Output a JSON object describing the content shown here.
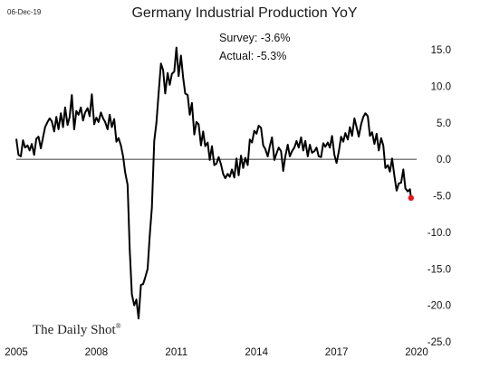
{
  "chart_data": {
    "type": "line",
    "title": "Germany Industrial Production YoY",
    "date_label": "06-Dec-19",
    "annotations": [
      "Survey: -3.6%",
      "Actual:  -5.3%"
    ],
    "source_logo": "The Daily Shot",
    "source_mark": "®",
    "xlim": [
      2005,
      2020
    ],
    "ylim": [
      -25,
      15
    ],
    "x_ticks": [
      {
        "value": 2005,
        "label": "2005"
      },
      {
        "value": 2008,
        "label": "2008"
      },
      {
        "value": 2011,
        "label": "2011"
      },
      {
        "value": 2014,
        "label": "2014"
      },
      {
        "value": 2017,
        "label": "2017"
      },
      {
        "value": 2020,
        "label": "2020"
      }
    ],
    "y_ticks": [
      {
        "value": 15,
        "label": "15.0"
      },
      {
        "value": 10,
        "label": "10.0"
      },
      {
        "value": 5,
        "label": "5.0"
      },
      {
        "value": 0,
        "label": "0.0"
      },
      {
        "value": -5,
        "label": "-5.0"
      },
      {
        "value": -10,
        "label": "-10.0"
      },
      {
        "value": -15,
        "label": "-15.0"
      },
      {
        "value": -20,
        "label": "-20.0"
      },
      {
        "value": -25,
        "label": "-25.0"
      }
    ],
    "grid": false,
    "line_color": "#000000",
    "marker_color": "#e8141c",
    "last_point": {
      "x": 2019.79,
      "y": -5.3
    },
    "series": [
      {
        "values": [
          [
            2005.0,
            2.8
          ],
          [
            2005.08,
            0.6
          ],
          [
            2005.17,
            0.4
          ],
          [
            2005.25,
            2.6
          ],
          [
            2005.33,
            1.6
          ],
          [
            2005.42,
            1.9
          ],
          [
            2005.5,
            1.2
          ],
          [
            2005.58,
            2.1
          ],
          [
            2005.67,
            0.6
          ],
          [
            2005.75,
            2.8
          ],
          [
            2005.83,
            3.1
          ],
          [
            2005.92,
            1.5
          ],
          [
            2006.0,
            3.0
          ],
          [
            2006.08,
            4.4
          ],
          [
            2006.17,
            5.1
          ],
          [
            2006.25,
            5.6
          ],
          [
            2006.33,
            5.2
          ],
          [
            2006.42,
            3.8
          ],
          [
            2006.5,
            5.8
          ],
          [
            2006.58,
            4.1
          ],
          [
            2006.67,
            6.3
          ],
          [
            2006.75,
            4.4
          ],
          [
            2006.83,
            7.1
          ],
          [
            2006.92,
            4.7
          ],
          [
            2007.0,
            5.8
          ],
          [
            2007.08,
            8.8
          ],
          [
            2007.17,
            4.1
          ],
          [
            2007.25,
            6.6
          ],
          [
            2007.33,
            6.1
          ],
          [
            2007.42,
            7.1
          ],
          [
            2007.5,
            5.3
          ],
          [
            2007.58,
            6.4
          ],
          [
            2007.67,
            7.0
          ],
          [
            2007.75,
            5.9
          ],
          [
            2007.83,
            8.9
          ],
          [
            2007.92,
            4.8
          ],
          [
            2008.0,
            5.7
          ],
          [
            2008.08,
            5.1
          ],
          [
            2008.17,
            6.4
          ],
          [
            2008.25,
            5.6
          ],
          [
            2008.33,
            5.1
          ],
          [
            2008.42,
            4.1
          ],
          [
            2008.5,
            6.1
          ],
          [
            2008.58,
            4.4
          ],
          [
            2008.67,
            5.5
          ],
          [
            2008.75,
            2.4
          ],
          [
            2008.83,
            2.9
          ],
          [
            2008.92,
            1.9
          ],
          [
            2009.0,
            0.4
          ],
          [
            2009.08,
            -1.8
          ],
          [
            2009.17,
            -3.5
          ],
          [
            2009.25,
            -12.3
          ],
          [
            2009.33,
            -18.5
          ],
          [
            2009.42,
            -20.0
          ],
          [
            2009.5,
            -19.2
          ],
          [
            2009.58,
            -21.8
          ],
          [
            2009.67,
            -17.2
          ],
          [
            2009.75,
            -17.1
          ],
          [
            2009.83,
            -16.2
          ],
          [
            2009.92,
            -15.0
          ],
          [
            2010.0,
            -10.5
          ],
          [
            2010.08,
            -6.6
          ],
          [
            2010.17,
            2.5
          ],
          [
            2010.25,
            5.0
          ],
          [
            2010.33,
            9.0
          ],
          [
            2010.42,
            13.1
          ],
          [
            2010.5,
            12.2
          ],
          [
            2010.58,
            9.0
          ],
          [
            2010.67,
            11.8
          ],
          [
            2010.75,
            10.2
          ],
          [
            2010.83,
            11.7
          ],
          [
            2010.92,
            12.0
          ],
          [
            2011.0,
            15.3
          ],
          [
            2011.08,
            11.4
          ],
          [
            2011.17,
            14.2
          ],
          [
            2011.25,
            11.2
          ],
          [
            2011.33,
            9.0
          ],
          [
            2011.42,
            8.8
          ],
          [
            2011.5,
            6.1
          ],
          [
            2011.58,
            7.7
          ],
          [
            2011.67,
            3.4
          ],
          [
            2011.75,
            5.1
          ],
          [
            2011.83,
            4.8
          ],
          [
            2011.92,
            1.9
          ],
          [
            2012.0,
            3.8
          ],
          [
            2012.08,
            1.8
          ],
          [
            2012.17,
            2.3
          ],
          [
            2012.25,
            -0.1
          ],
          [
            2012.33,
            1.8
          ],
          [
            2012.42,
            -0.8
          ],
          [
            2012.5,
            -0.6
          ],
          [
            2012.58,
            0.3
          ],
          [
            2012.67,
            -0.7
          ],
          [
            2012.75,
            -2.0
          ],
          [
            2012.83,
            -2.6
          ],
          [
            2012.92,
            -2.0
          ],
          [
            2013.0,
            -2.4
          ],
          [
            2013.08,
            -1.4
          ],
          [
            2013.17,
            -2.5
          ],
          [
            2013.25,
            0.1
          ],
          [
            2013.33,
            -2.2
          ],
          [
            2013.42,
            0.5
          ],
          [
            2013.5,
            -1.2
          ],
          [
            2013.58,
            0.2
          ],
          [
            2013.67,
            -0.8
          ],
          [
            2013.75,
            2.7
          ],
          [
            2013.83,
            2.3
          ],
          [
            2013.92,
            3.9
          ],
          [
            2014.0,
            3.5
          ],
          [
            2014.08,
            4.6
          ],
          [
            2014.17,
            4.3
          ],
          [
            2014.25,
            1.9
          ],
          [
            2014.33,
            1.4
          ],
          [
            2014.42,
            0.4
          ],
          [
            2014.5,
            1.8
          ],
          [
            2014.58,
            3.0
          ],
          [
            2014.67,
            -0.1
          ],
          [
            2014.75,
            0.8
          ],
          [
            2014.83,
            1.6
          ],
          [
            2014.92,
            1.1
          ],
          [
            2015.0,
            -1.6
          ],
          [
            2015.08,
            0.4
          ],
          [
            2015.17,
            2.0
          ],
          [
            2015.25,
            0.4
          ],
          [
            2015.33,
            1.1
          ],
          [
            2015.42,
            1.6
          ],
          [
            2015.5,
            2.5
          ],
          [
            2015.58,
            1.6
          ],
          [
            2015.67,
            3.0
          ],
          [
            2015.75,
            1.2
          ],
          [
            2015.83,
            2.5
          ],
          [
            2015.92,
            0.4
          ],
          [
            2016.0,
            2.0
          ],
          [
            2016.08,
            0.9
          ],
          [
            2016.17,
            1.1
          ],
          [
            2016.25,
            1.6
          ],
          [
            2016.33,
            0.4
          ],
          [
            2016.42,
            0.3
          ],
          [
            2016.5,
            2.2
          ],
          [
            2016.58,
            1.7
          ],
          [
            2016.67,
            2.3
          ],
          [
            2016.75,
            1.6
          ],
          [
            2016.83,
            3.2
          ],
          [
            2016.92,
            0.6
          ],
          [
            2017.0,
            -0.5
          ],
          [
            2017.08,
            1.0
          ],
          [
            2017.17,
            3.1
          ],
          [
            2017.25,
            2.4
          ],
          [
            2017.33,
            3.6
          ],
          [
            2017.42,
            2.7
          ],
          [
            2017.5,
            4.4
          ],
          [
            2017.58,
            3.2
          ],
          [
            2017.67,
            5.6
          ],
          [
            2017.75,
            4.4
          ],
          [
            2017.83,
            3.1
          ],
          [
            2017.92,
            4.8
          ],
          [
            2018.0,
            5.8
          ],
          [
            2018.08,
            6.3
          ],
          [
            2018.17,
            5.9
          ],
          [
            2018.25,
            3.2
          ],
          [
            2018.33,
            3.7
          ],
          [
            2018.42,
            2.1
          ],
          [
            2018.5,
            3.5
          ],
          [
            2018.58,
            1.2
          ],
          [
            2018.67,
            2.9
          ],
          [
            2018.75,
            1.9
          ],
          [
            2018.83,
            -1.2
          ],
          [
            2018.92,
            -0.8
          ],
          [
            2019.0,
            -1.7
          ],
          [
            2019.08,
            0.1
          ],
          [
            2019.17,
            -2.3
          ],
          [
            2019.25,
            -4.3
          ],
          [
            2019.33,
            -3.3
          ],
          [
            2019.42,
            -3.2
          ],
          [
            2019.5,
            -1.4
          ],
          [
            2019.58,
            -4.0
          ],
          [
            2019.67,
            -4.4
          ],
          [
            2019.75,
            -4.1
          ],
          [
            2019.79,
            -5.3
          ]
        ]
      }
    ]
  }
}
